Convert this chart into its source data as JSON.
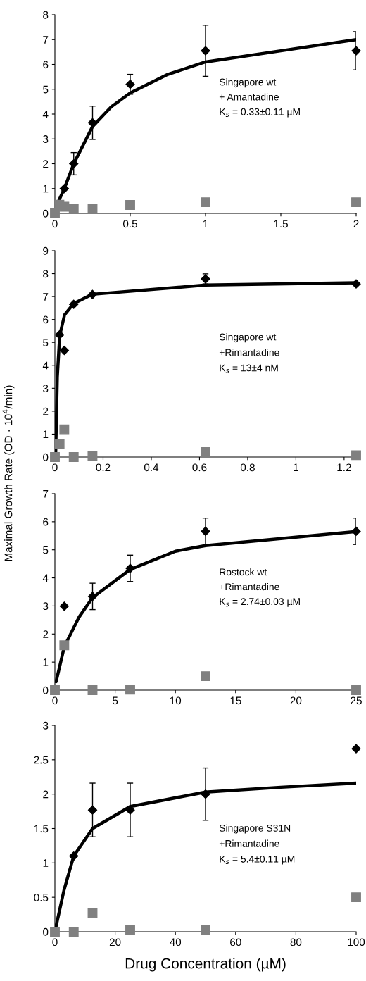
{
  "chart_data": [
    {
      "type": "scatter",
      "xlim": [
        0,
        2
      ],
      "xticks": [
        0,
        0.5,
        1,
        1.5,
        2
      ],
      "ylim": [
        0,
        8
      ],
      "yticks": [
        0,
        1,
        2,
        3,
        4,
        5,
        6,
        7,
        8
      ],
      "annotations": [
        "Singapore wt",
        "+ Amantadine",
        "K$_{s}$ = 0.33±0.11 µM"
      ],
      "series": [
        {
          "type": "line",
          "color": "#000000",
          "marker": "none",
          "x": [
            0.01,
            0.0625,
            0.125,
            0.25,
            0.375,
            0.5,
            0.75,
            1,
            1.5,
            2
          ],
          "values": [
            0.3,
            1.0,
            2.0,
            3.5,
            4.3,
            4.85,
            5.6,
            6.1,
            6.55,
            7.0
          ]
        },
        {
          "color": "#808080",
          "marker": "square",
          "x": [
            0,
            0.03,
            0.0625,
            0.125,
            0.25,
            0.5,
            1,
            2
          ],
          "values": [
            0,
            0.35,
            0.27,
            0.2,
            0.2,
            0.34,
            0.45,
            0.45
          ]
        },
        {
          "color": "#000000",
          "marker": "diamond",
          "x": [
            0.0625,
            0.125,
            0.25,
            0.5,
            1,
            2
          ],
          "values": [
            1.0,
            2.0,
            3.65,
            5.2,
            6.55,
            6.55
          ],
          "errors": [
            null,
            0.45,
            0.67,
            0.4,
            1.03,
            0.77
          ]
        }
      ]
    },
    {
      "type": "scatter",
      "xlim": [
        0,
        1.25
      ],
      "xticks": [
        0,
        0.2,
        0.4,
        0.6,
        0.8,
        1,
        1.2
      ],
      "ylim": [
        0,
        9
      ],
      "yticks": [
        0,
        1,
        2,
        3,
        4,
        5,
        6,
        7,
        8,
        9
      ],
      "annotations": [
        "Singapore wt",
        "+Rimantadine",
        "K$_{s}$ = 13±4 nM"
      ],
      "series": [
        {
          "type": "line",
          "color": "#000000",
          "marker": "none",
          "x": [
            0.003,
            0.01,
            0.02,
            0.04,
            0.078,
            0.156,
            0.625,
            1.25
          ],
          "values": [
            0,
            3.5,
            5.3,
            6.2,
            6.7,
            7.1,
            7.5,
            7.6
          ]
        },
        {
          "color": "#808080",
          "marker": "square",
          "x": [
            0,
            0.0195,
            0.039,
            0.078,
            0.156,
            0.625,
            1.25
          ],
          "values": [
            0,
            0.56,
            1.21,
            0,
            0.03,
            0.22,
            0.08
          ]
        },
        {
          "color": "#000000",
          "marker": "diamond",
          "x": [
            0.0195,
            0.039,
            0.078,
            0.156,
            0.625,
            1.25
          ],
          "values": [
            5.33,
            4.65,
            6.66,
            7.09,
            7.77,
            7.55
          ],
          "errors": [
            null,
            null,
            null,
            null,
            0.22,
            null
          ]
        }
      ]
    },
    {
      "type": "scatter",
      "xlim": [
        0,
        25
      ],
      "xticks": [
        0,
        5,
        10,
        15,
        20,
        25
      ],
      "ylim": [
        0,
        7
      ],
      "yticks": [
        0,
        1,
        2,
        3,
        4,
        5,
        6,
        7
      ],
      "ylabel": "Maximal Growth Rate (OD · 10$^{4}$/min)",
      "annotations": [
        "Rostock wt",
        "+Rimantadine",
        "K$_{s}$ = 2.74±0.03 µM"
      ],
      "series": [
        {
          "type": "line",
          "color": "#000000",
          "marker": "none",
          "x": [
            0.1,
            0.78,
            2,
            3.125,
            6.25,
            10,
            12.5,
            20,
            25
          ],
          "values": [
            0.3,
            1.55,
            2.6,
            3.3,
            4.3,
            4.95,
            5.15,
            5.45,
            5.65
          ]
        },
        {
          "color": "#808080",
          "marker": "square",
          "x": [
            0,
            0.78,
            3.125,
            6.25,
            12.5,
            25
          ],
          "values": [
            0,
            1.6,
            0,
            0.02,
            0.5,
            0
          ]
        },
        {
          "color": "#000000",
          "marker": "diamond",
          "x": [
            0.78,
            3.125,
            6.25,
            12.5,
            25
          ],
          "values": [
            2.99,
            3.34,
            4.34,
            5.66,
            5.66
          ],
          "errors": [
            null,
            0.47,
            0.47,
            0.47,
            0.47
          ]
        }
      ]
    },
    {
      "type": "scatter",
      "xlim": [
        0,
        100
      ],
      "xticks": [
        0,
        20,
        40,
        60,
        80,
        100
      ],
      "ylim": [
        0,
        3
      ],
      "yticks": [
        0,
        0.5,
        1,
        1.5,
        2,
        2.5,
        3
      ],
      "xlabel": "Drug Concentration (µM)",
      "annotations": [
        "Singapore S31N",
        "+Rimantadine",
        "K$_{s}$ = 5.4±0.11 µM"
      ],
      "series": [
        {
          "type": "line",
          "color": "#000000",
          "marker": "none",
          "x": [
            0,
            3,
            6.25,
            12.5,
            25,
            50,
            75,
            100
          ],
          "values": [
            0,
            0.6,
            1.1,
            1.5,
            1.82,
            2.03,
            2.1,
            2.16
          ]
        },
        {
          "color": "#808080",
          "marker": "square",
          "x": [
            0,
            6.25,
            12.5,
            25,
            50,
            100
          ],
          "values": [
            0,
            0,
            0.27,
            0.03,
            0.02,
            0.5
          ]
        },
        {
          "color": "#000000",
          "marker": "diamond",
          "x": [
            6.25,
            12.5,
            25,
            50,
            100
          ],
          "values": [
            1.1,
            1.77,
            1.77,
            2.0,
            2.66
          ],
          "errors": [
            null,
            0.39,
            0.39,
            0.38,
            null
          ]
        }
      ]
    }
  ]
}
